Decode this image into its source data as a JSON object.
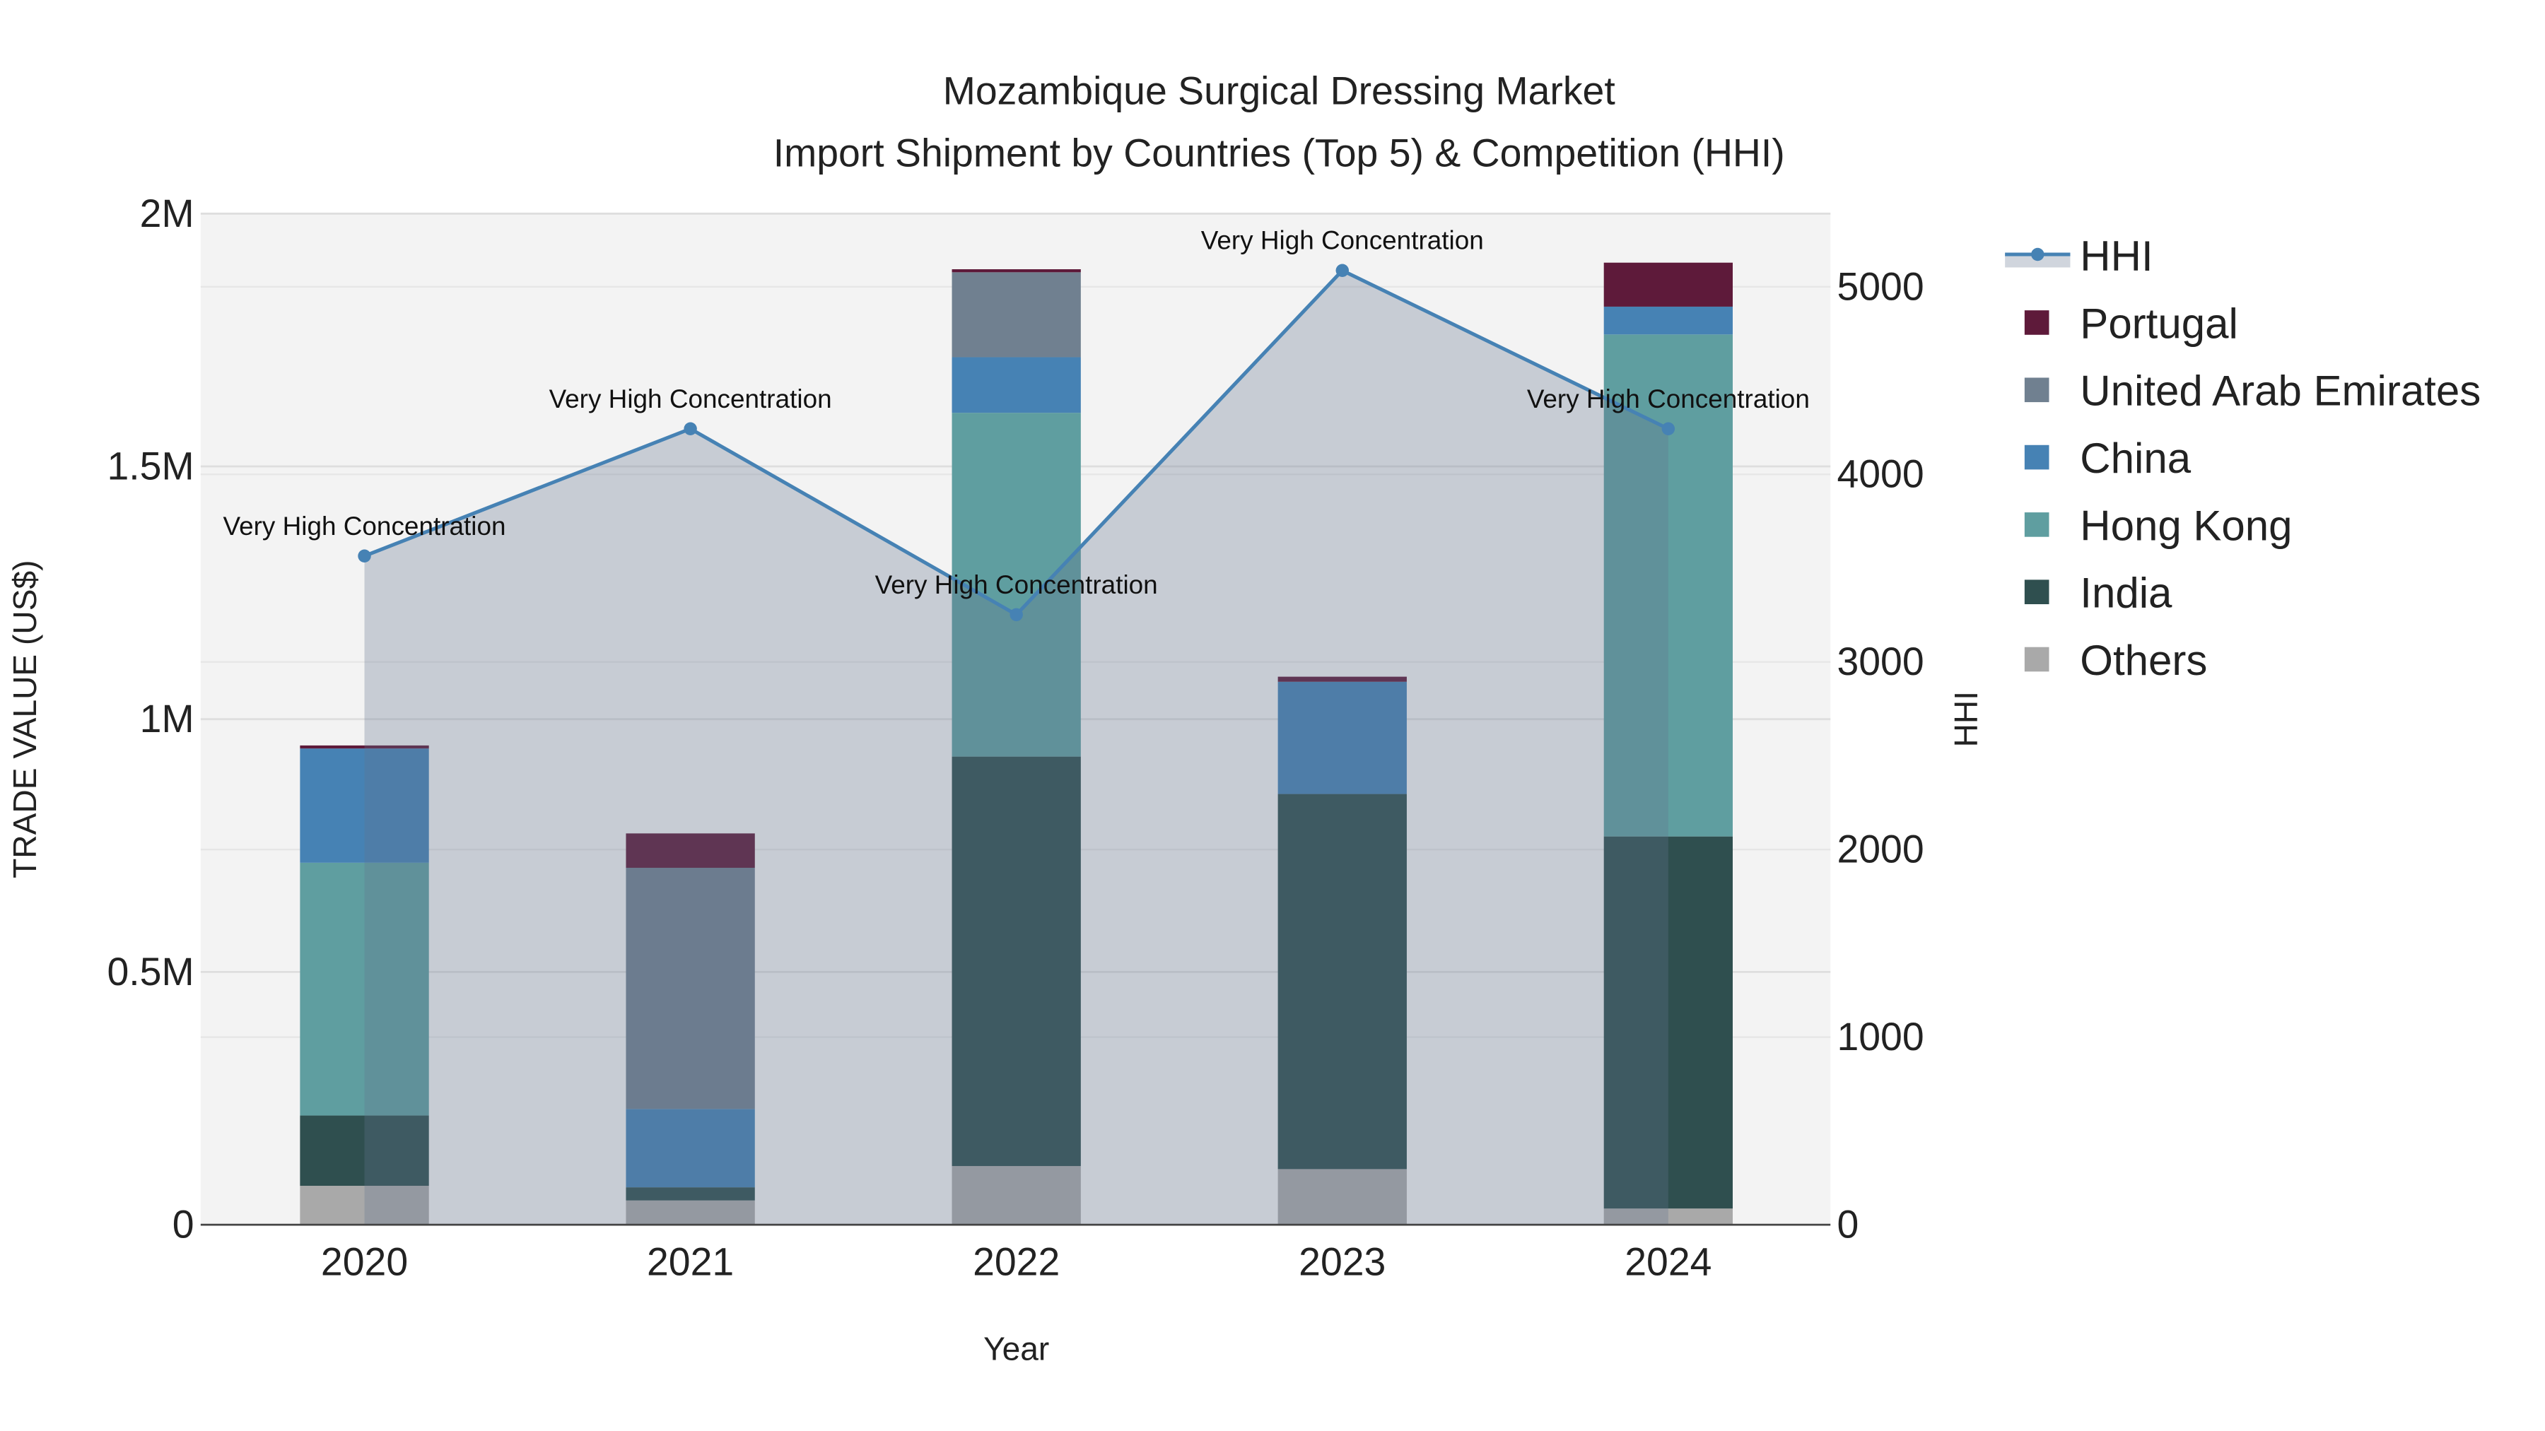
{
  "chart_data": {
    "type": "bar",
    "title": "Mozambique Surgical Dressing Market",
    "subtitle": "Import Shipment by Countries (Top 5) & Competition (HHI)",
    "xlabel": "Year",
    "ylabel": "TRADE VALUE (US$)",
    "y2label": "HHI",
    "categories": [
      "2020",
      "2021",
      "2022",
      "2023",
      "2024"
    ],
    "ylim": [
      0,
      2000000
    ],
    "y_ticks": [
      {
        "v": 0,
        "label": "0"
      },
      {
        "v": 500000,
        "label": "0.5M"
      },
      {
        "v": 1000000,
        "label": "1M"
      },
      {
        "v": 1500000,
        "label": "1.5M"
      },
      {
        "v": 2000000,
        "label": "2M"
      }
    ],
    "y2lim": [
      0,
      5390
    ],
    "y2_ticks": [
      0,
      1000,
      2000,
      3000,
      4000,
      5000
    ],
    "stacked": true,
    "series": [
      {
        "name": "Others",
        "color": "#a9a9a9",
        "values": [
          77000,
          48000,
          116000,
          110000,
          32000
        ]
      },
      {
        "name": "India",
        "color": "#2f4f4f",
        "values": [
          139000,
          26000,
          810000,
          742000,
          736000
        ]
      },
      {
        "name": "Hong Kong",
        "color": "#5f9ea0",
        "values": [
          500000,
          0,
          680000,
          0,
          993000
        ]
      },
      {
        "name": "China",
        "color": "#4682b4",
        "values": [
          226000,
          155000,
          110000,
          222000,
          55000
        ]
      },
      {
        "name": "United Arab Emirates",
        "color": "#708090",
        "values": [
          0,
          477000,
          168000,
          0,
          0
        ]
      },
      {
        "name": "Portugal",
        "color": "#5e1a3a",
        "values": [
          6000,
          68000,
          6000,
          10000,
          87000
        ]
      }
    ],
    "hhi": {
      "name": "HHI",
      "color": "#4682b4",
      "values": [
        3565,
        4243,
        3252,
        5087,
        4243
      ],
      "annotations": [
        "Very High Concentration",
        "Very High Concentration",
        "Very High Concentration",
        "Very High Concentration",
        "Very High Concentration"
      ]
    },
    "legend_order": [
      "HHI",
      "Portugal",
      "United Arab Emirates",
      "China",
      "Hong Kong",
      "India",
      "Others"
    ],
    "legend_position": "right",
    "grid": true
  }
}
